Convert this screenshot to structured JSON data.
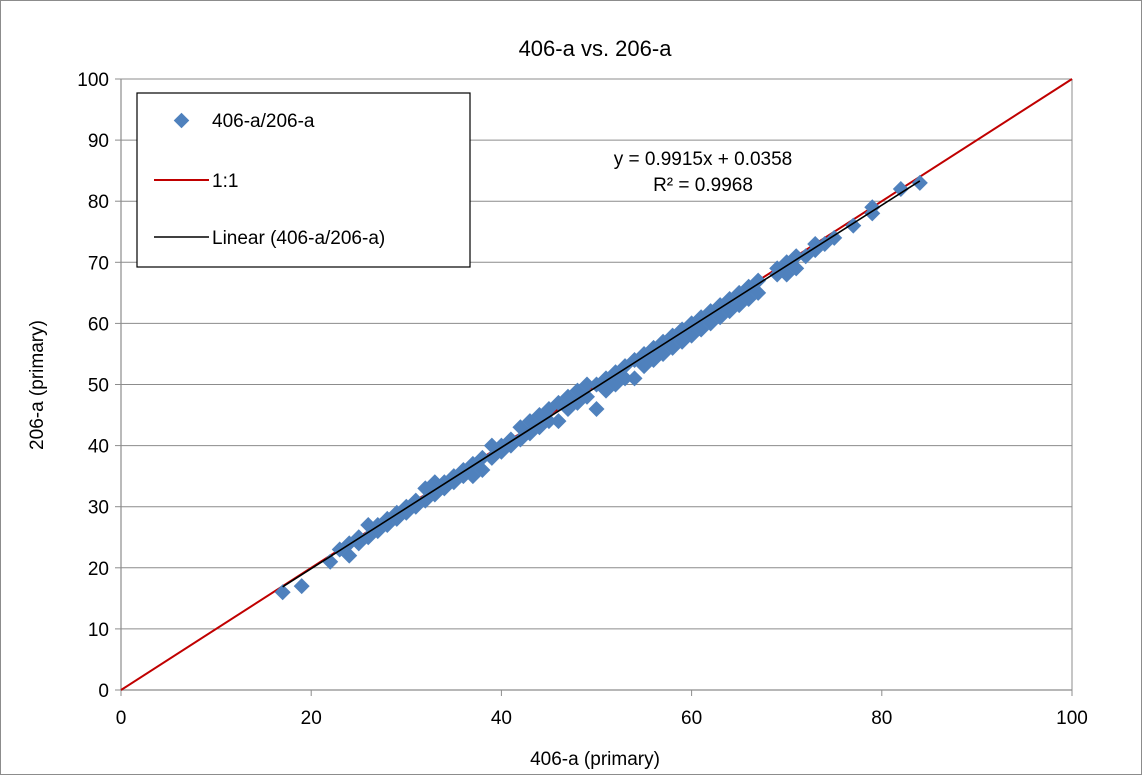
{
  "chart_data": {
    "type": "scatter",
    "title": "406-a vs. 206-a",
    "xlabel": "406-a (primary)",
    "ylabel": "206-a (primary)",
    "xlim": [
      0,
      100
    ],
    "ylim": [
      0,
      100
    ],
    "x_ticks": [
      0,
      20,
      40,
      60,
      80,
      100
    ],
    "y_ticks": [
      0,
      10,
      20,
      30,
      40,
      50,
      60,
      70,
      80,
      90,
      100
    ],
    "grid": "horizontal",
    "legend_position": "top-left",
    "colors": {
      "points": "#4f81bd",
      "one_to_one": "#c00000",
      "trend": "#000000",
      "grid": "#8c8c8c"
    },
    "series": [
      {
        "name": "406-a/206-a",
        "kind": "points",
        "x": [
          17,
          19,
          22,
          23,
          24,
          24,
          25,
          25,
          26,
          26,
          27,
          27,
          28,
          28,
          29,
          29,
          30,
          30,
          31,
          31,
          32,
          32,
          33,
          33,
          34,
          34,
          35,
          35,
          36,
          36,
          37,
          37,
          38,
          38,
          39,
          39,
          40,
          40,
          41,
          41,
          42,
          42,
          43,
          43,
          44,
          44,
          45,
          45,
          46,
          46,
          47,
          47,
          48,
          48,
          49,
          49,
          50,
          50,
          51,
          51,
          52,
          52,
          53,
          53,
          54,
          54,
          55,
          55,
          56,
          56,
          57,
          57,
          58,
          58,
          59,
          59,
          60,
          60,
          61,
          61,
          62,
          62,
          63,
          63,
          64,
          64,
          65,
          65,
          66,
          66,
          67,
          67,
          69,
          69,
          70,
          70,
          71,
          71,
          72,
          73,
          73,
          74,
          75,
          77,
          79,
          79,
          82,
          84
        ],
        "y": [
          16,
          17,
          21,
          23,
          22,
          24,
          24,
          25,
          25,
          27,
          26,
          27,
          27,
          28,
          28,
          29,
          29,
          30,
          30,
          31,
          31,
          33,
          32,
          34,
          33,
          34,
          34,
          35,
          35,
          36,
          35,
          37,
          36,
          38,
          38,
          40,
          39,
          40,
          40,
          41,
          41,
          43,
          42,
          44,
          43,
          45,
          44,
          46,
          44,
          47,
          46,
          48,
          47,
          49,
          48,
          50,
          46,
          50,
          49,
          51,
          50,
          52,
          51,
          53,
          51,
          54,
          53,
          55,
          54,
          56,
          55,
          57,
          56,
          58,
          57,
          59,
          58,
          60,
          59,
          61,
          60,
          62,
          61,
          63,
          62,
          64,
          63,
          65,
          64,
          66,
          65,
          67,
          68,
          69,
          68,
          70,
          69,
          71,
          71,
          72,
          73,
          73,
          74,
          76,
          78,
          79,
          82,
          83
        ]
      },
      {
        "name": "1:1",
        "kind": "line",
        "x": [
          0,
          100
        ],
        "y": [
          0,
          100
        ]
      },
      {
        "name": "Linear (406-a/206-a)",
        "kind": "trendline",
        "slope": 0.9915,
        "intercept": 0.0358,
        "x": [
          17,
          84
        ]
      }
    ],
    "annotations": {
      "equation": "y = 0.9915x + 0.0358",
      "r_squared": "R² = 0.9968"
    }
  }
}
